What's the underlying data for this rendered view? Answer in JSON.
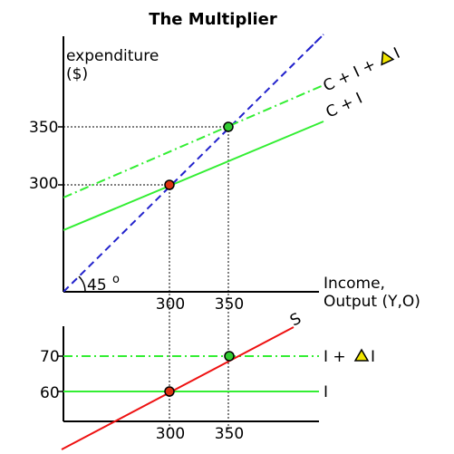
{
  "title": "The Multiplier",
  "colors": {
    "green": "#33ee33",
    "blue_dashed": "#2222cc",
    "red": "#ee1111",
    "point_red": "#dd3311",
    "point_green": "#33cc33",
    "triangle_yellow": "#f2e600",
    "axis": "#000000"
  },
  "top_panel": {
    "y_axis_label_line1": "expenditure",
    "y_axis_label_line2": "($)",
    "x_axis_label_line1": "Income,",
    "x_axis_label_line2": "Output (Y,O)",
    "y_ticks": [
      "350",
      "300"
    ],
    "x_ticks": [
      "300",
      "350"
    ],
    "angle_label": "45",
    "angle_unit": "o",
    "line_labels": {
      "c_plus_i": "C + I",
      "c_plus_i_plus_delta_prefix": "C + I +",
      "c_plus_i_plus_delta_suffix": "I"
    }
  },
  "bottom_panel": {
    "y_ticks": [
      "70",
      "60"
    ],
    "x_ticks": [
      "300",
      "350"
    ],
    "s_label": "S",
    "i_label": "I",
    "i_plus_delta_prefix": "I +",
    "i_plus_delta_suffix": "I"
  }
}
